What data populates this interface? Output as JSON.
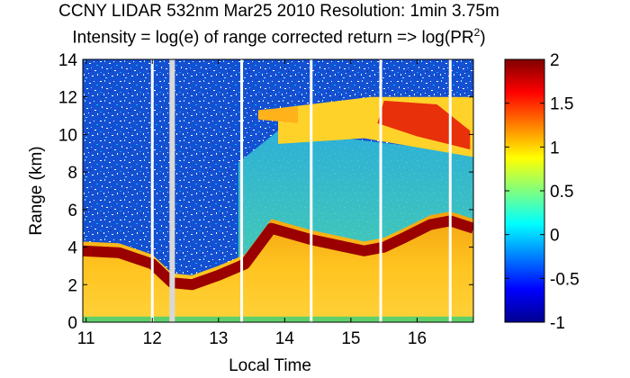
{
  "chart_data": {
    "type": "heatmap",
    "title_line1": "CCNY LIDAR 532nm Mar25 2010 Resolution: 1min 3.75m",
    "title_line2_prefix": "Intensity = log(e) of range corrected return => log(PR",
    "title_line2_sup": "2",
    "title_line2_suffix": ")",
    "xlabel": "Local Time",
    "ylabel": "Range (km)",
    "xlim": [
      10.95,
      16.85
    ],
    "ylim": [
      0,
      14
    ],
    "x_ticks": [
      11,
      12,
      13,
      14,
      15,
      16
    ],
    "x_tick_labels": [
      "11",
      "12",
      "13",
      "14",
      "15",
      "16"
    ],
    "y_ticks": [
      0,
      2,
      4,
      6,
      8,
      10,
      12,
      14
    ],
    "y_tick_labels": [
      "0",
      "2",
      "4",
      "6",
      "8",
      "10",
      "12",
      "14"
    ],
    "colorbar": {
      "range": [
        -1,
        2
      ],
      "ticks": [
        -1,
        -0.5,
        0,
        0.5,
        1,
        1.5,
        2
      ],
      "tick_labels": [
        "-1",
        "-0.5",
        "0",
        "0.5",
        "1",
        "1.5",
        "2"
      ],
      "colormap": "jet"
    },
    "data_gaps_local_time": [
      12.0,
      12.3,
      13.35,
      14.4,
      15.45,
      16.5
    ],
    "boundary_layer_top_km": {
      "x": [
        10.95,
        11.5,
        12.0,
        12.3,
        12.6,
        13.0,
        13.4,
        13.8,
        14.0,
        14.4,
        14.8,
        15.2,
        15.5,
        15.8,
        16.2,
        16.5,
        16.85
      ],
      "y": [
        4.3,
        4.2,
        3.6,
        2.6,
        2.5,
        3.0,
        3.6,
        5.5,
        5.3,
        4.9,
        4.6,
        4.3,
        4.5,
        5.0,
        5.7,
        5.9,
        5.5
      ]
    },
    "cirrus_layer_km": {
      "x_start": 13.9,
      "x_end": 16.85,
      "base_km": [
        8.8,
        9.5
      ],
      "top_km": [
        11.4,
        12.0
      ]
    }
  },
  "colors": {
    "axis": "#000000",
    "gap": "#ffffff",
    "noise_blue": "#1450d2"
  }
}
